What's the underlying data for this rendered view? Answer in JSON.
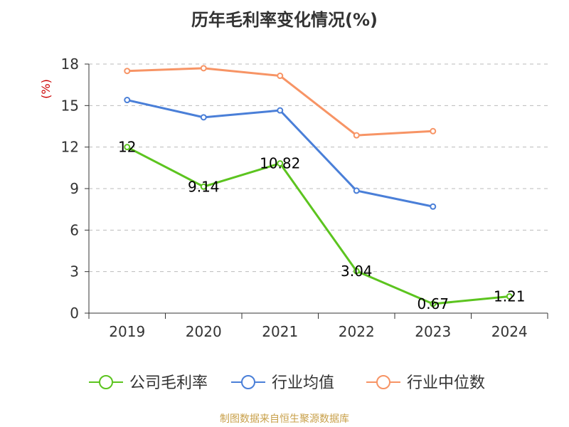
{
  "title": "历年毛利率变化情况(%)",
  "source": "制图数据来自恒生聚源数据库",
  "colors": {
    "company": "#5cc41f",
    "industry_avg": "#4a7fd8",
    "industry_median": "#f79465",
    "grid": "#bbbbbb",
    "axis": "#333333"
  },
  "chart_data": {
    "type": "line",
    "title": "历年毛利率变化情况(%)",
    "ylabel": "(%)",
    "xlabel": "",
    "ylim": [
      0,
      18
    ],
    "yticks": [
      0,
      3,
      6,
      9,
      12,
      15,
      18
    ],
    "categories": [
      "2019",
      "2020",
      "2021",
      "2022",
      "2023",
      "2024"
    ],
    "grid": true,
    "legend_position": "bottom",
    "series": [
      {
        "name": "公司毛利率",
        "color": "#5cc41f",
        "values": [
          12,
          9.14,
          10.82,
          3.04,
          0.67,
          1.21
        ],
        "labels": [
          "12",
          "9.14",
          "10.82",
          "3.04",
          "0.67",
          "1.21"
        ]
      },
      {
        "name": "行业均值",
        "color": "#4a7fd8",
        "values": [
          15.4,
          14.15,
          14.65,
          8.85,
          7.7,
          null
        ]
      },
      {
        "name": "行业中位数",
        "color": "#f79465",
        "values": [
          17.5,
          17.7,
          17.15,
          12.85,
          13.15,
          null
        ]
      }
    ]
  }
}
